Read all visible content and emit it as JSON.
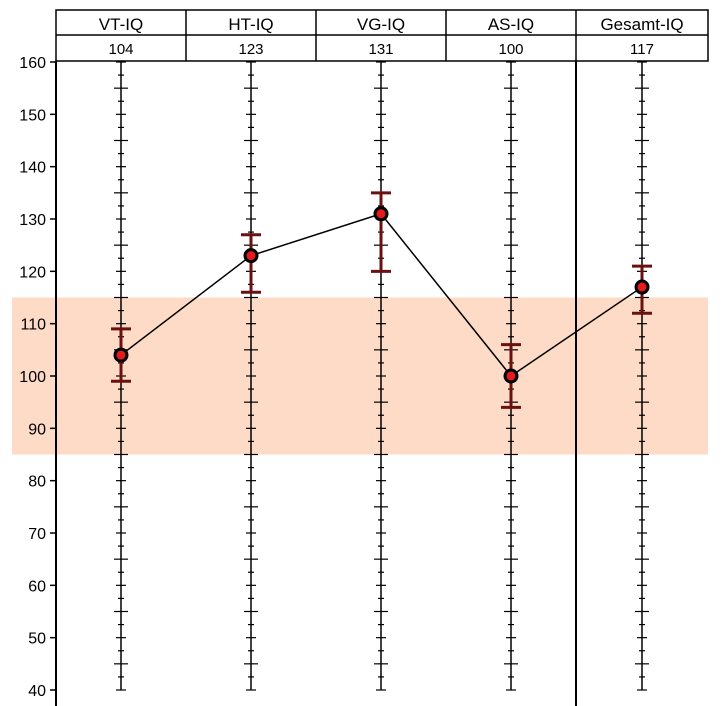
{
  "chart_data": {
    "type": "line",
    "categories": [
      "VT-IQ",
      "HT-IQ",
      "VG-IQ",
      "AS-IQ",
      "Gesamt-IQ"
    ],
    "values": [
      104,
      123,
      131,
      100,
      117
    ],
    "value_labels": [
      "104",
      "123",
      "131",
      "100",
      "117"
    ],
    "error_bars": [
      {
        "low": 99,
        "high": 109
      },
      {
        "low": 116,
        "high": 127
      },
      {
        "low": 120,
        "high": 135
      },
      {
        "low": 94,
        "high": 106
      },
      {
        "low": 112,
        "high": 121
      }
    ],
    "ylim": [
      40,
      160
    ],
    "yticks": [
      40,
      50,
      60,
      70,
      80,
      90,
      100,
      110,
      120,
      130,
      140,
      150,
      160
    ],
    "ytick_labels": [
      "40",
      "50",
      "60",
      "70",
      "80",
      "90",
      "100",
      "110",
      "120",
      "130",
      "140",
      "150",
      "160"
    ],
    "minor_tick_step": 2.5,
    "normal_band": {
      "low": 85,
      "high": 115,
      "color": "#fddbc7"
    },
    "colors": {
      "marker_fill": "#e41a1c",
      "marker_edge": "#000000",
      "error_bar": "#6b1010",
      "line": "#000000"
    },
    "title": "",
    "xlabel": "",
    "ylabel": "",
    "grid": false,
    "legend": "none"
  }
}
